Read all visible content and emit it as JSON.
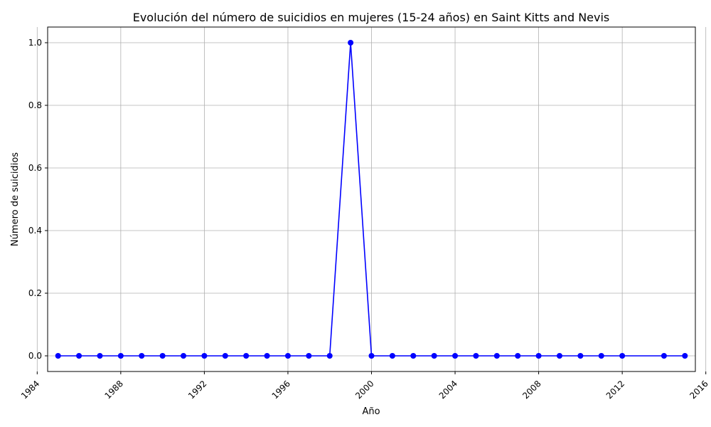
{
  "chart_data": {
    "type": "line",
    "title": "Evolución del número de suicidios en mujeres (15-24 años) en Saint Kitts and Nevis",
    "xlabel": "Año",
    "ylabel": "Número de suicidios",
    "x": [
      1985,
      1986,
      1987,
      1988,
      1989,
      1990,
      1991,
      1992,
      1993,
      1994,
      1995,
      1996,
      1997,
      1998,
      1999,
      2000,
      2001,
      2002,
      2003,
      2004,
      2005,
      2006,
      2007,
      2008,
      2009,
      2010,
      2011,
      2012,
      2014,
      2015
    ],
    "series": [
      {
        "values": [
          0,
          0,
          0,
          0,
          0,
          0,
          0,
          0,
          0,
          0,
          0,
          0,
          0,
          0,
          1,
          0,
          0,
          0,
          0,
          0,
          0,
          0,
          0,
          0,
          0,
          0,
          0,
          0,
          0,
          0
        ],
        "color": "#0000ff",
        "marker": "circle"
      }
    ],
    "xlim": [
      1984.5,
      2015.5
    ],
    "ylim": [
      -0.05,
      1.05
    ],
    "xticks": [
      1984,
      1988,
      1992,
      1996,
      2000,
      2004,
      2008,
      2012,
      2016
    ],
    "yticks": [
      0.0,
      0.2,
      0.4,
      0.6,
      0.8,
      1.0
    ],
    "ytick_labels": [
      "0.0",
      "0.2",
      "0.4",
      "0.6",
      "0.8",
      "1.0"
    ],
    "xtick_rotation": 45,
    "grid": true,
    "legend": "none"
  }
}
